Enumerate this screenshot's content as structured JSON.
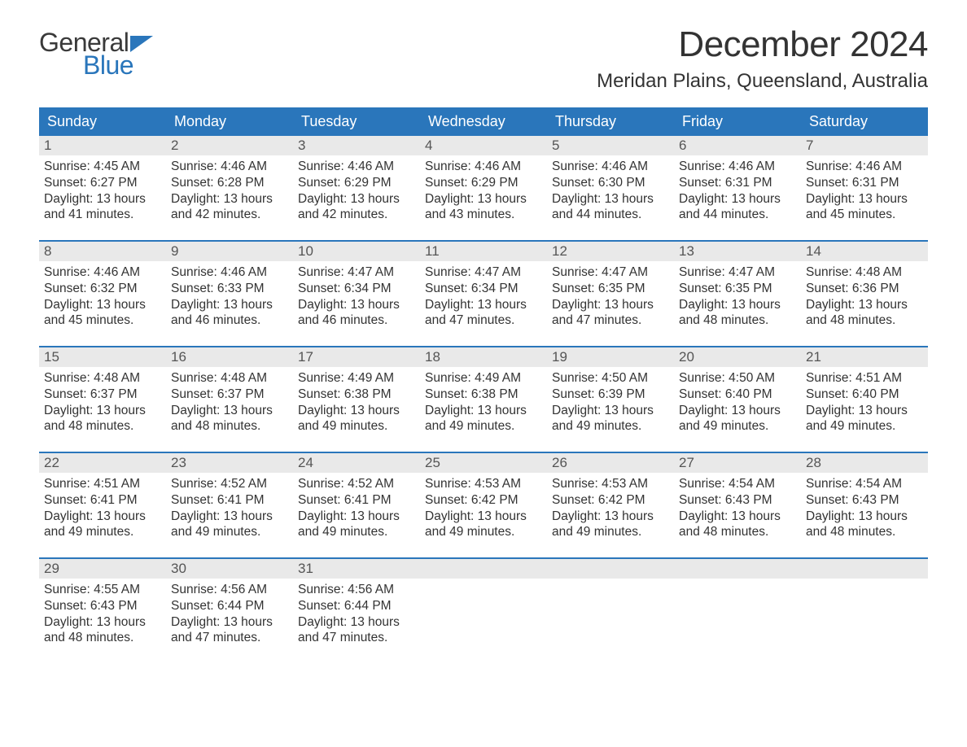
{
  "logo": {
    "line1": "General",
    "line2": "Blue",
    "icon_color": "#2a76bb"
  },
  "title": "December 2024",
  "location": "Meridan Plains, Queensland, Australia",
  "colors": {
    "header_bg": "#2a76bb",
    "header_text": "#ffffff",
    "daynum_bg": "#e9e9e9",
    "week_divider": "#2a76bb",
    "body_text": "#333333"
  },
  "day_names": [
    "Sunday",
    "Monday",
    "Tuesday",
    "Wednesday",
    "Thursday",
    "Friday",
    "Saturday"
  ],
  "weeks": [
    [
      {
        "num": "1",
        "sunrise": "Sunrise: 4:45 AM",
        "sunset": "Sunset: 6:27 PM",
        "day1": "Daylight: 13 hours",
        "day2": "and 41 minutes."
      },
      {
        "num": "2",
        "sunrise": "Sunrise: 4:46 AM",
        "sunset": "Sunset: 6:28 PM",
        "day1": "Daylight: 13 hours",
        "day2": "and 42 minutes."
      },
      {
        "num": "3",
        "sunrise": "Sunrise: 4:46 AM",
        "sunset": "Sunset: 6:29 PM",
        "day1": "Daylight: 13 hours",
        "day2": "and 42 minutes."
      },
      {
        "num": "4",
        "sunrise": "Sunrise: 4:46 AM",
        "sunset": "Sunset: 6:29 PM",
        "day1": "Daylight: 13 hours",
        "day2": "and 43 minutes."
      },
      {
        "num": "5",
        "sunrise": "Sunrise: 4:46 AM",
        "sunset": "Sunset: 6:30 PM",
        "day1": "Daylight: 13 hours",
        "day2": "and 44 minutes."
      },
      {
        "num": "6",
        "sunrise": "Sunrise: 4:46 AM",
        "sunset": "Sunset: 6:31 PM",
        "day1": "Daylight: 13 hours",
        "day2": "and 44 minutes."
      },
      {
        "num": "7",
        "sunrise": "Sunrise: 4:46 AM",
        "sunset": "Sunset: 6:31 PM",
        "day1": "Daylight: 13 hours",
        "day2": "and 45 minutes."
      }
    ],
    [
      {
        "num": "8",
        "sunrise": "Sunrise: 4:46 AM",
        "sunset": "Sunset: 6:32 PM",
        "day1": "Daylight: 13 hours",
        "day2": "and 45 minutes."
      },
      {
        "num": "9",
        "sunrise": "Sunrise: 4:46 AM",
        "sunset": "Sunset: 6:33 PM",
        "day1": "Daylight: 13 hours",
        "day2": "and 46 minutes."
      },
      {
        "num": "10",
        "sunrise": "Sunrise: 4:47 AM",
        "sunset": "Sunset: 6:34 PM",
        "day1": "Daylight: 13 hours",
        "day2": "and 46 minutes."
      },
      {
        "num": "11",
        "sunrise": "Sunrise: 4:47 AM",
        "sunset": "Sunset: 6:34 PM",
        "day1": "Daylight: 13 hours",
        "day2": "and 47 minutes."
      },
      {
        "num": "12",
        "sunrise": "Sunrise: 4:47 AM",
        "sunset": "Sunset: 6:35 PM",
        "day1": "Daylight: 13 hours",
        "day2": "and 47 minutes."
      },
      {
        "num": "13",
        "sunrise": "Sunrise: 4:47 AM",
        "sunset": "Sunset: 6:35 PM",
        "day1": "Daylight: 13 hours",
        "day2": "and 48 minutes."
      },
      {
        "num": "14",
        "sunrise": "Sunrise: 4:48 AM",
        "sunset": "Sunset: 6:36 PM",
        "day1": "Daylight: 13 hours",
        "day2": "and 48 minutes."
      }
    ],
    [
      {
        "num": "15",
        "sunrise": "Sunrise: 4:48 AM",
        "sunset": "Sunset: 6:37 PM",
        "day1": "Daylight: 13 hours",
        "day2": "and 48 minutes."
      },
      {
        "num": "16",
        "sunrise": "Sunrise: 4:48 AM",
        "sunset": "Sunset: 6:37 PM",
        "day1": "Daylight: 13 hours",
        "day2": "and 48 minutes."
      },
      {
        "num": "17",
        "sunrise": "Sunrise: 4:49 AM",
        "sunset": "Sunset: 6:38 PM",
        "day1": "Daylight: 13 hours",
        "day2": "and 49 minutes."
      },
      {
        "num": "18",
        "sunrise": "Sunrise: 4:49 AM",
        "sunset": "Sunset: 6:38 PM",
        "day1": "Daylight: 13 hours",
        "day2": "and 49 minutes."
      },
      {
        "num": "19",
        "sunrise": "Sunrise: 4:50 AM",
        "sunset": "Sunset: 6:39 PM",
        "day1": "Daylight: 13 hours",
        "day2": "and 49 minutes."
      },
      {
        "num": "20",
        "sunrise": "Sunrise: 4:50 AM",
        "sunset": "Sunset: 6:40 PM",
        "day1": "Daylight: 13 hours",
        "day2": "and 49 minutes."
      },
      {
        "num": "21",
        "sunrise": "Sunrise: 4:51 AM",
        "sunset": "Sunset: 6:40 PM",
        "day1": "Daylight: 13 hours",
        "day2": "and 49 minutes."
      }
    ],
    [
      {
        "num": "22",
        "sunrise": "Sunrise: 4:51 AM",
        "sunset": "Sunset: 6:41 PM",
        "day1": "Daylight: 13 hours",
        "day2": "and 49 minutes."
      },
      {
        "num": "23",
        "sunrise": "Sunrise: 4:52 AM",
        "sunset": "Sunset: 6:41 PM",
        "day1": "Daylight: 13 hours",
        "day2": "and 49 minutes."
      },
      {
        "num": "24",
        "sunrise": "Sunrise: 4:52 AM",
        "sunset": "Sunset: 6:41 PM",
        "day1": "Daylight: 13 hours",
        "day2": "and 49 minutes."
      },
      {
        "num": "25",
        "sunrise": "Sunrise: 4:53 AM",
        "sunset": "Sunset: 6:42 PM",
        "day1": "Daylight: 13 hours",
        "day2": "and 49 minutes."
      },
      {
        "num": "26",
        "sunrise": "Sunrise: 4:53 AM",
        "sunset": "Sunset: 6:42 PM",
        "day1": "Daylight: 13 hours",
        "day2": "and 49 minutes."
      },
      {
        "num": "27",
        "sunrise": "Sunrise: 4:54 AM",
        "sunset": "Sunset: 6:43 PM",
        "day1": "Daylight: 13 hours",
        "day2": "and 48 minutes."
      },
      {
        "num": "28",
        "sunrise": "Sunrise: 4:54 AM",
        "sunset": "Sunset: 6:43 PM",
        "day1": "Daylight: 13 hours",
        "day2": "and 48 minutes."
      }
    ],
    [
      {
        "num": "29",
        "sunrise": "Sunrise: 4:55 AM",
        "sunset": "Sunset: 6:43 PM",
        "day1": "Daylight: 13 hours",
        "day2": "and 48 minutes."
      },
      {
        "num": "30",
        "sunrise": "Sunrise: 4:56 AM",
        "sunset": "Sunset: 6:44 PM",
        "day1": "Daylight: 13 hours",
        "day2": "and 47 minutes."
      },
      {
        "num": "31",
        "sunrise": "Sunrise: 4:56 AM",
        "sunset": "Sunset: 6:44 PM",
        "day1": "Daylight: 13 hours",
        "day2": "and 47 minutes."
      },
      null,
      null,
      null,
      null
    ]
  ]
}
